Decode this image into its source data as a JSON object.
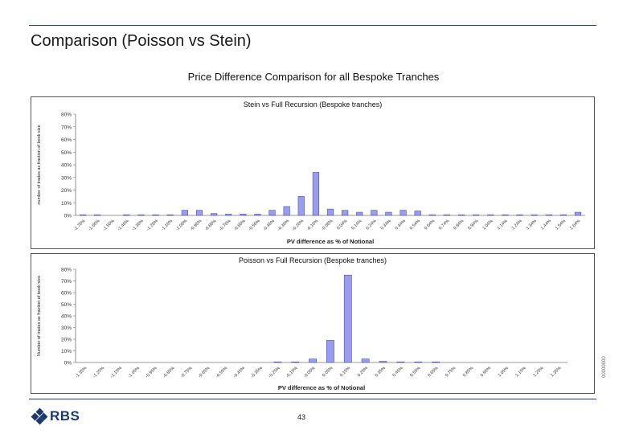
{
  "page": {
    "title": "Comparison (Poisson vs Stein)",
    "subtitle": "Price Difference Comparison for all Bespoke Tranches",
    "page_number": "43",
    "logo_text": "RBS",
    "doc_code": "00000000"
  },
  "colors": {
    "bar": "#9a9cee",
    "bar_stroke": "#4b4fb0",
    "brand": "#1b3a6b",
    "frame": "#555555"
  },
  "chart_data": [
    {
      "type": "bar",
      "title": "Stein vs Full Recursion (Bespoke tranches)",
      "xlabel": "PV difference as % of Notional",
      "ylabel": "number of trades as fraction of book size",
      "ylim": [
        0,
        0.8
      ],
      "yticks": [
        "0%",
        "10%",
        "20%",
        "30%",
        "40%",
        "50%",
        "60%",
        "70%",
        "80%"
      ],
      "categories": [
        "-1.76%",
        "-1.66%",
        "-1.56%",
        "-1.46%",
        "-1.36%",
        "-1.26%",
        "-1.16%",
        "-1.06%",
        "-0.96%",
        "-0.86%",
        "-0.76%",
        "-0.66%",
        "-0.56%",
        "-0.46%",
        "-0.36%",
        "-0.26%",
        "-0.16%",
        "-0.06%",
        "0.04%",
        "0.14%",
        "0.24%",
        "0.34%",
        "0.44%",
        "0.54%",
        "0.64%",
        "0.74%",
        "0.84%",
        "0.94%",
        "1.04%",
        "1.14%",
        "1.24%",
        "1.34%",
        "1.44%",
        "1.54%",
        "1.64%"
      ],
      "values": [
        0.005,
        0.005,
        0,
        0.005,
        0.005,
        0.005,
        0.005,
        0.04,
        0.04,
        0.015,
        0.01,
        0.01,
        0.01,
        0.04,
        0.07,
        0.15,
        0.34,
        0.05,
        0.04,
        0.025,
        0.04,
        0.025,
        0.04,
        0.035,
        0.005,
        0.005,
        0.005,
        0.005,
        0.005,
        0.005,
        0.005,
        0.005,
        0.005,
        0.005,
        0.025
      ],
      "grid": false
    },
    {
      "type": "bar",
      "title": "Poisson vs Full Recursion (Bespoke tranches)",
      "xlabel": "PV difference as % of Notional",
      "ylabel": "Number of trades as fraction of book size",
      "ylim": [
        0,
        0.8
      ],
      "yticks": [
        "0%",
        "10%",
        "20%",
        "30%",
        "40%",
        "50%",
        "60%",
        "70%",
        "80%"
      ],
      "categories": [
        "-1.35%",
        "-1.25%",
        "-1.15%",
        "-1.05%",
        "-0.95%",
        "-0.85%",
        "-0.75%",
        "-0.65%",
        "-0.55%",
        "-0.45%",
        "-0.35%",
        "-0.25%",
        "-0.15%",
        "-0.05%",
        "0.05%",
        "0.15%",
        "0.25%",
        "0.35%",
        "0.45%",
        "0.55%",
        "0.65%",
        "0.75%",
        "0.85%",
        "0.95%",
        "1.05%",
        "1.15%",
        "1.25%",
        "1.35%"
      ],
      "values": [
        0,
        0,
        0,
        0,
        0,
        0,
        0,
        0,
        0,
        0,
        0,
        0.005,
        0.005,
        0.03,
        0.19,
        0.75,
        0.03,
        0.01,
        0.005,
        0.005,
        0.005,
        0,
        0,
        0,
        0,
        0,
        0,
        0
      ],
      "grid": false
    }
  ]
}
